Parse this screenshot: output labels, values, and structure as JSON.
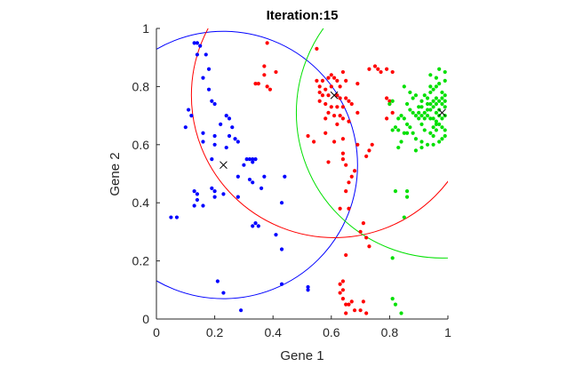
{
  "chart_data": {
    "type": "scatter",
    "title": "Iteration:15",
    "xlabel": "Gene 1",
    "ylabel": "Gene 2",
    "xlim": [
      0,
      1
    ],
    "ylim": [
      0,
      1
    ],
    "xticks": [
      "0",
      "0.2",
      "0.4",
      "0.6",
      "0.8",
      "1"
    ],
    "yticks": [
      "0",
      "0.2",
      "0.4",
      "0.6",
      "0.8",
      "1"
    ],
    "grid": false,
    "legend": "none",
    "colors": {
      "blue": "#0000ff",
      "red": "#ff0000",
      "green": "#00e000",
      "axis": "#262626"
    },
    "series": [
      {
        "color": "#0000ff",
        "centroid": [
          0.23,
          0.53
        ],
        "radius": 0.46,
        "points": [
          [
            0.13,
            0.95
          ],
          [
            0.14,
            0.95
          ],
          [
            0.15,
            0.94
          ],
          [
            0.14,
            0.91
          ],
          [
            0.17,
            0.91
          ],
          [
            0.18,
            0.86
          ],
          [
            0.16,
            0.83
          ],
          [
            0.18,
            0.79
          ],
          [
            0.19,
            0.75
          ],
          [
            0.2,
            0.74
          ],
          [
            0.11,
            0.72
          ],
          [
            0.12,
            0.7
          ],
          [
            0.24,
            0.7
          ],
          [
            0.25,
            0.69
          ],
          [
            0.22,
            0.67
          ],
          [
            0.1,
            0.66
          ],
          [
            0.26,
            0.66
          ],
          [
            0.16,
            0.64
          ],
          [
            0.2,
            0.63
          ],
          [
            0.25,
            0.63
          ],
          [
            0.27,
            0.62
          ],
          [
            0.28,
            0.61
          ],
          [
            0.16,
            0.61
          ],
          [
            0.2,
            0.6
          ],
          [
            0.24,
            0.59
          ],
          [
            0.19,
            0.55
          ],
          [
            0.31,
            0.55
          ],
          [
            0.32,
            0.55
          ],
          [
            0.33,
            0.55
          ],
          [
            0.34,
            0.55
          ],
          [
            0.33,
            0.54
          ],
          [
            0.3,
            0.53
          ],
          [
            0.28,
            0.49
          ],
          [
            0.32,
            0.48
          ],
          [
            0.33,
            0.47
          ],
          [
            0.37,
            0.49
          ],
          [
            0.44,
            0.49
          ],
          [
            0.36,
            0.45
          ],
          [
            0.19,
            0.45
          ],
          [
            0.2,
            0.44
          ],
          [
            0.13,
            0.44
          ],
          [
            0.14,
            0.43
          ],
          [
            0.23,
            0.43
          ],
          [
            0.28,
            0.42
          ],
          [
            0.14,
            0.41
          ],
          [
            0.43,
            0.4
          ],
          [
            0.13,
            0.39
          ],
          [
            0.16,
            0.39
          ],
          [
            0.2,
            0.42
          ],
          [
            0.05,
            0.35
          ],
          [
            0.07,
            0.35
          ],
          [
            0.34,
            0.33
          ],
          [
            0.33,
            0.32
          ],
          [
            0.35,
            0.32
          ],
          [
            0.41,
            0.29
          ],
          [
            0.43,
            0.24
          ],
          [
            0.21,
            0.13
          ],
          [
            0.43,
            0.12
          ],
          [
            0.52,
            0.11
          ],
          [
            0.23,
            0.09
          ],
          [
            0.52,
            0.1
          ],
          [
            0.29,
            0.03
          ]
        ]
      },
      {
        "color": "#ff0000",
        "centroid": [
          0.61,
          0.77
        ],
        "radius": 0.49,
        "points": [
          [
            0.38,
            0.95
          ],
          [
            0.55,
            0.93
          ],
          [
            0.34,
            0.81
          ],
          [
            0.35,
            0.81
          ],
          [
            0.38,
            0.8
          ],
          [
            0.39,
            0.79
          ],
          [
            0.41,
            0.85
          ],
          [
            0.37,
            0.87
          ],
          [
            0.37,
            0.84
          ],
          [
            0.59,
            0.83
          ],
          [
            0.6,
            0.84
          ],
          [
            0.61,
            0.83
          ],
          [
            0.62,
            0.82
          ],
          [
            0.64,
            0.85
          ],
          [
            0.65,
            0.82
          ],
          [
            0.63,
            0.8
          ],
          [
            0.6,
            0.8
          ],
          [
            0.58,
            0.79
          ],
          [
            0.56,
            0.78
          ],
          [
            0.57,
            0.77
          ],
          [
            0.59,
            0.77
          ],
          [
            0.62,
            0.77
          ],
          [
            0.63,
            0.76
          ],
          [
            0.65,
            0.76
          ],
          [
            0.66,
            0.75
          ],
          [
            0.67,
            0.74
          ],
          [
            0.56,
            0.75
          ],
          [
            0.58,
            0.74
          ],
          [
            0.6,
            0.73
          ],
          [
            0.62,
            0.73
          ],
          [
            0.64,
            0.73
          ],
          [
            0.59,
            0.71
          ],
          [
            0.61,
            0.7
          ],
          [
            0.63,
            0.7
          ],
          [
            0.58,
            0.69
          ],
          [
            0.62,
            0.67
          ],
          [
            0.55,
            0.82
          ],
          [
            0.57,
            0.82
          ],
          [
            0.56,
            0.8
          ],
          [
            0.69,
            0.81
          ],
          [
            0.73,
            0.86
          ],
          [
            0.75,
            0.87
          ],
          [
            0.76,
            0.86
          ],
          [
            0.77,
            0.85
          ],
          [
            0.79,
            0.86
          ],
          [
            0.81,
            0.85
          ],
          [
            0.79,
            0.76
          ],
          [
            0.8,
            0.75
          ],
          [
            0.8,
            0.74
          ],
          [
            0.81,
            0.71
          ],
          [
            0.79,
            0.69
          ],
          [
            0.69,
            0.71
          ],
          [
            0.66,
            0.68
          ],
          [
            0.64,
            0.69
          ],
          [
            0.58,
            0.64
          ],
          [
            0.52,
            0.63
          ],
          [
            0.54,
            0.61
          ],
          [
            0.61,
            0.61
          ],
          [
            0.64,
            0.62
          ],
          [
            0.69,
            0.6
          ],
          [
            0.74,
            0.6
          ],
          [
            0.64,
            0.57
          ],
          [
            0.72,
            0.56
          ],
          [
            0.73,
            0.58
          ],
          [
            0.64,
            0.55
          ],
          [
            0.59,
            0.54
          ],
          [
            0.65,
            0.53
          ],
          [
            0.68,
            0.51
          ],
          [
            0.67,
            0.49
          ],
          [
            0.66,
            0.47
          ],
          [
            0.65,
            0.44
          ],
          [
            0.66,
            0.38
          ],
          [
            0.63,
            0.38
          ],
          [
            0.71,
            0.33
          ],
          [
            0.7,
            0.3
          ],
          [
            0.72,
            0.28
          ],
          [
            0.73,
            0.25
          ],
          [
            0.65,
            0.22
          ],
          [
            0.64,
            0.13
          ],
          [
            0.63,
            0.12
          ],
          [
            0.64,
            0.1
          ],
          [
            0.63,
            0.09
          ],
          [
            0.64,
            0.07
          ],
          [
            0.65,
            0.05
          ],
          [
            0.66,
            0.05
          ],
          [
            0.67,
            0.06
          ],
          [
            0.68,
            0.03
          ],
          [
            0.7,
            0.03
          ],
          [
            0.71,
            0.06
          ],
          [
            0.72,
            0.02
          ],
          [
            0.65,
            0.02
          ]
        ]
      },
      {
        "color": "#00e000",
        "centroid": [
          0.98,
          0.71
        ],
        "radius": 0.5,
        "points": [
          [
            0.98,
            0.78
          ],
          [
            0.99,
            0.77
          ],
          [
            0.98,
            0.76
          ],
          [
            0.97,
            0.75
          ],
          [
            0.96,
            0.74
          ],
          [
            0.95,
            0.73
          ],
          [
            0.94,
            0.72
          ],
          [
            0.93,
            0.72
          ],
          [
            0.92,
            0.71
          ],
          [
            0.93,
            0.7
          ],
          [
            0.94,
            0.69
          ],
          [
            0.95,
            0.69
          ],
          [
            0.96,
            0.68
          ],
          [
            0.97,
            0.67
          ],
          [
            0.98,
            0.66
          ],
          [
            0.99,
            0.65
          ],
          [
            0.97,
            0.72
          ],
          [
            0.99,
            0.73
          ],
          [
            0.96,
            0.71
          ],
          [
            0.99,
            0.7
          ],
          [
            0.98,
            0.69
          ],
          [
            0.96,
            0.65
          ],
          [
            0.95,
            0.63
          ],
          [
            0.94,
            0.64
          ],
          [
            0.92,
            0.65
          ],
          [
            0.91,
            0.67
          ],
          [
            0.9,
            0.69
          ],
          [
            0.89,
            0.7
          ],
          [
            0.9,
            0.73
          ],
          [
            0.91,
            0.75
          ],
          [
            0.92,
            0.77
          ],
          [
            0.94,
            0.78
          ],
          [
            0.95,
            0.79
          ],
          [
            0.96,
            0.8
          ],
          [
            0.97,
            0.81
          ],
          [
            0.99,
            0.82
          ],
          [
            0.94,
            0.8
          ],
          [
            0.93,
            0.76
          ],
          [
            0.91,
            0.73
          ],
          [
            0.88,
            0.71
          ],
          [
            0.87,
            0.72
          ],
          [
            0.86,
            0.74
          ],
          [
            0.86,
            0.67
          ],
          [
            0.87,
            0.66
          ],
          [
            0.88,
            0.64
          ],
          [
            0.89,
            0.62
          ],
          [
            0.91,
            0.61
          ],
          [
            0.93,
            0.6
          ],
          [
            0.95,
            0.6
          ],
          [
            0.97,
            0.61
          ],
          [
            0.98,
            0.62
          ],
          [
            0.99,
            0.63
          ],
          [
            0.99,
            0.75
          ],
          [
            0.98,
            0.74
          ],
          [
            0.97,
            0.7
          ],
          [
            0.96,
            0.76
          ],
          [
            0.95,
            0.75
          ],
          [
            0.94,
            0.74
          ],
          [
            0.93,
            0.74
          ],
          [
            0.92,
            0.69
          ],
          [
            0.91,
            0.7
          ],
          [
            0.9,
            0.71
          ],
          [
            0.95,
            0.66
          ],
          [
            0.96,
            0.67
          ],
          [
            0.84,
            0.7
          ],
          [
            0.85,
            0.69
          ],
          [
            0.83,
            0.69
          ],
          [
            0.86,
            0.64
          ],
          [
            0.85,
            0.64
          ],
          [
            0.83,
            0.65
          ],
          [
            0.82,
            0.66
          ],
          [
            0.89,
            0.58
          ],
          [
            0.91,
            0.59
          ],
          [
            0.84,
            0.61
          ],
          [
            0.83,
            0.59
          ],
          [
            0.81,
            0.65
          ],
          [
            0.8,
            0.74
          ],
          [
            0.81,
            0.75
          ],
          [
            0.87,
            0.78
          ],
          [
            0.85,
            0.8
          ],
          [
            0.88,
            0.76
          ],
          [
            0.89,
            0.77
          ],
          [
            0.94,
            0.84
          ],
          [
            0.96,
            0.83
          ],
          [
            0.97,
            0.86
          ],
          [
            0.99,
            0.85
          ],
          [
            0.82,
            0.44
          ],
          [
            0.86,
            0.44
          ],
          [
            0.86,
            0.42
          ],
          [
            0.85,
            0.35
          ],
          [
            0.81,
            0.21
          ],
          [
            0.81,
            0.07
          ],
          [
            0.82,
            0.05
          ],
          [
            0.84,
            0.02
          ]
        ]
      }
    ]
  }
}
